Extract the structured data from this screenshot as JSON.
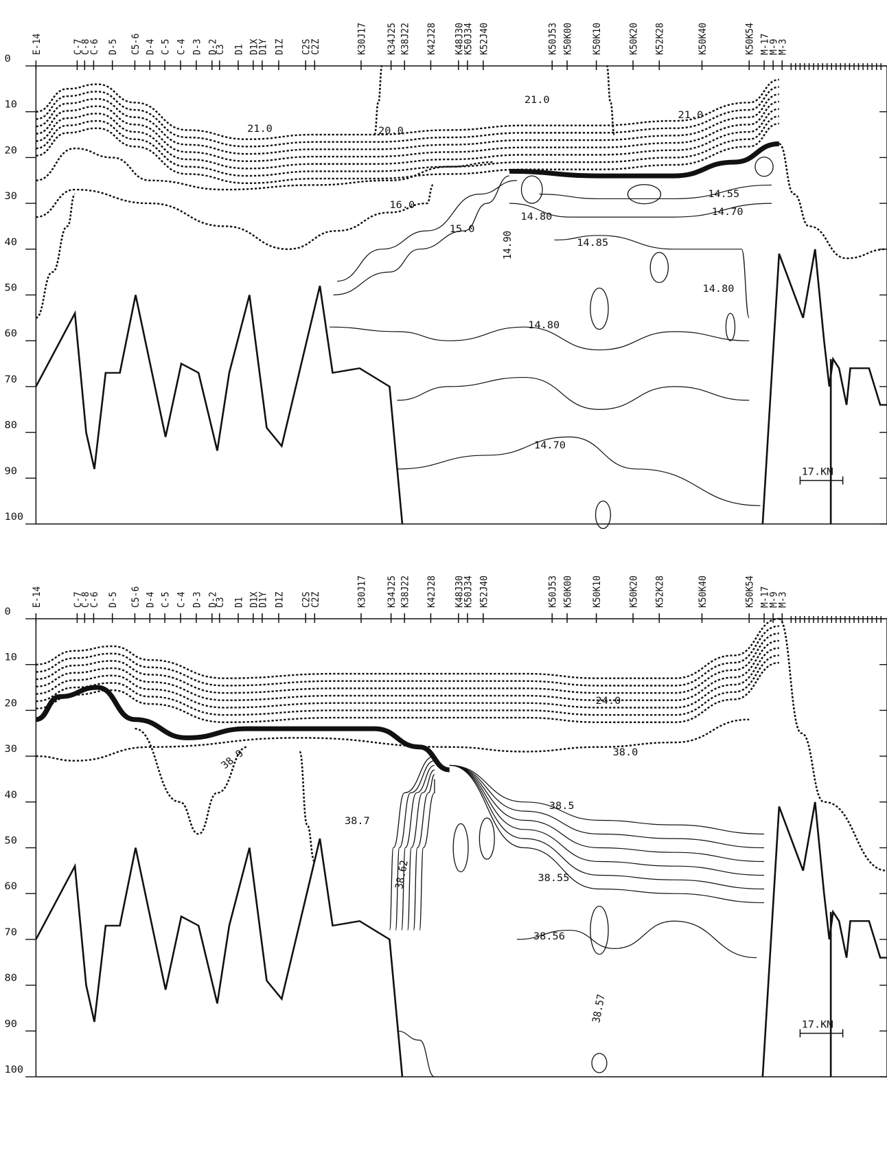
{
  "chart_data": [
    {
      "type": "contour",
      "categories": [
        "E-14",
        "C-7",
        "C-8",
        "C-6",
        "D-5",
        "C5-6",
        "D-4",
        "C-5",
        "C-4",
        "D-3",
        "D-2",
        "C3",
        "D1",
        "D1X",
        "D1Y",
        "D1Z",
        "C2S",
        "C2Z",
        "K30J17",
        "K34J25",
        "K38J22",
        "K42J28",
        "K48J30",
        "K50J34",
        "K52J40",
        "K50J53",
        "K50K00",
        "K50K10",
        "K50K20",
        "K52K28",
        "K50K40",
        "K50K54",
        "M-17",
        "M-9",
        "M-3"
      ],
      "ylim": [
        0,
        100
      ],
      "yticks": [
        0,
        10,
        20,
        30,
        40,
        50,
        60,
        70,
        80,
        90,
        100
      ],
      "contour_labels": [
        "21.0",
        "20.0",
        "21.0",
        "21.0",
        "16.0",
        "15.0",
        "14.90",
        "14.85",
        "14.80",
        "14.55",
        "14.70",
        "14.80",
        "14.80",
        "14.70"
      ],
      "scale_label": "17.KM"
    },
    {
      "type": "contour",
      "categories": [
        "E-14",
        "C-7",
        "C-8",
        "C-6",
        "D-5",
        "C5-6",
        "D-4",
        "C-5",
        "C-4",
        "D-3",
        "D-2",
        "C3",
        "D1",
        "D1X",
        "D1Y",
        "D1Z",
        "C2S",
        "C2Z",
        "K30J17",
        "K34J25",
        "K38J22",
        "K42J28",
        "K48J30",
        "K50J34",
        "K52J40",
        "K50J53",
        "K50K00",
        "K50K10",
        "K50K20",
        "K52K28",
        "K50K40",
        "K50K54",
        "M-17",
        "M-9",
        "M-3"
      ],
      "ylim": [
        0,
        100
      ],
      "yticks": [
        0,
        10,
        20,
        30,
        40,
        50,
        60,
        70,
        80,
        90,
        100
      ],
      "contour_labels": [
        "24.0",
        "38.0",
        "38.9",
        "38.7",
        "38.62",
        "38.5",
        "38.55",
        "38.56",
        "38.57"
      ],
      "scale_label": "17.KM"
    }
  ]
}
